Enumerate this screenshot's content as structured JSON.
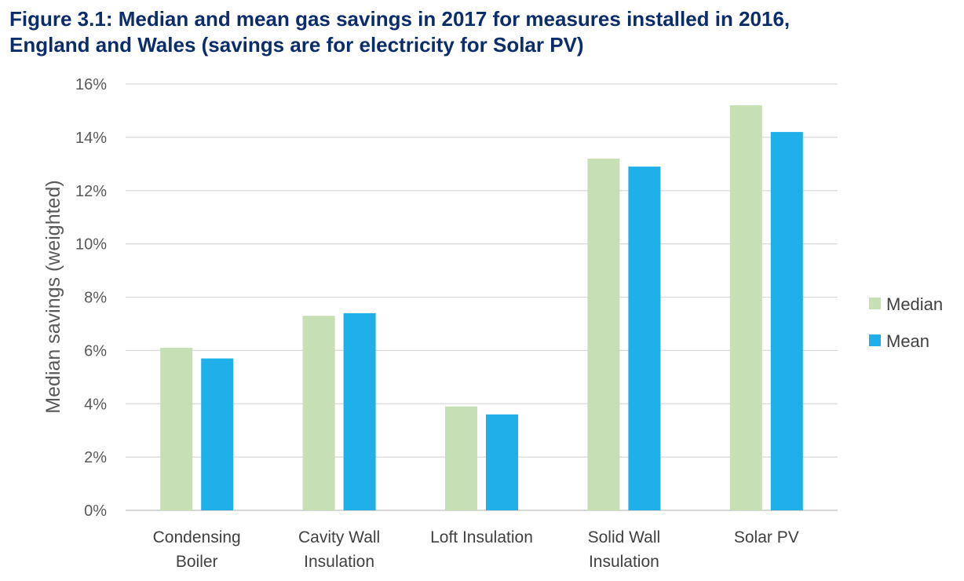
{
  "chart_data": {
    "type": "bar",
    "title_lines": [
      "Figure 3.1: Median and mean gas savings in 2017 for measures installed in 2016,",
      "England and Wales (savings are for electricity for Solar PV)"
    ],
    "ylabel": "Median savings (weighted)",
    "xlabel": "",
    "ylim": [
      0,
      16
    ],
    "yticks": [
      "0%",
      "2%",
      "4%",
      "6%",
      "8%",
      "10%",
      "12%",
      "14%",
      "16%"
    ],
    "categories": [
      [
        "Condensing",
        "Boiler"
      ],
      [
        "Cavity Wall",
        "Insulation"
      ],
      [
        "Loft Insulation"
      ],
      [
        "Solid Wall",
        "Insulation"
      ],
      [
        "Solar PV"
      ]
    ],
    "series": [
      {
        "name": "Median",
        "color": "#c6dfb4",
        "values": [
          6.1,
          7.3,
          3.9,
          13.2,
          15.2
        ]
      },
      {
        "name": "Mean",
        "color": "#1fb0ea",
        "values": [
          5.7,
          7.4,
          3.6,
          12.9,
          14.2
        ]
      }
    ],
    "grid": true,
    "legend": "right"
  }
}
